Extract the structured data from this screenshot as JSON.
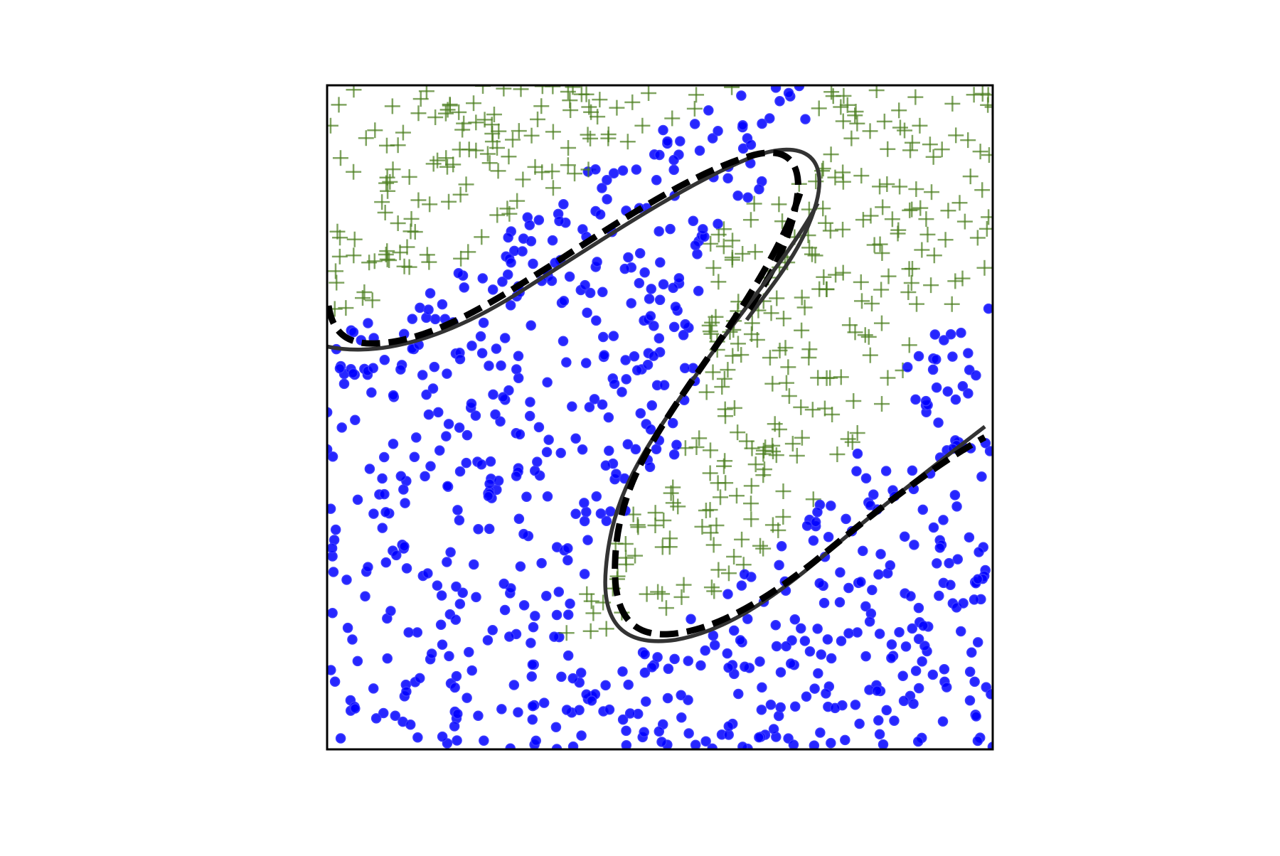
{
  "chart_data": {
    "type": "scatter",
    "title": "",
    "xlabel": "",
    "ylabel": "",
    "xlim": [
      0,
      1
    ],
    "ylim": [
      0,
      1
    ],
    "grid": false,
    "ticks_visible": false,
    "legend": "none",
    "series": [
      {
        "marker": "circle",
        "color": "#0000ff",
        "count_estimate": 560
      },
      {
        "marker": "plus",
        "color": "#4a7d1e",
        "count_estimate": 560
      }
    ],
    "boundaries": [
      {
        "style": "solid",
        "color": "#333333"
      },
      {
        "style": "dashed",
        "color": "#000000"
      }
    ]
  }
}
